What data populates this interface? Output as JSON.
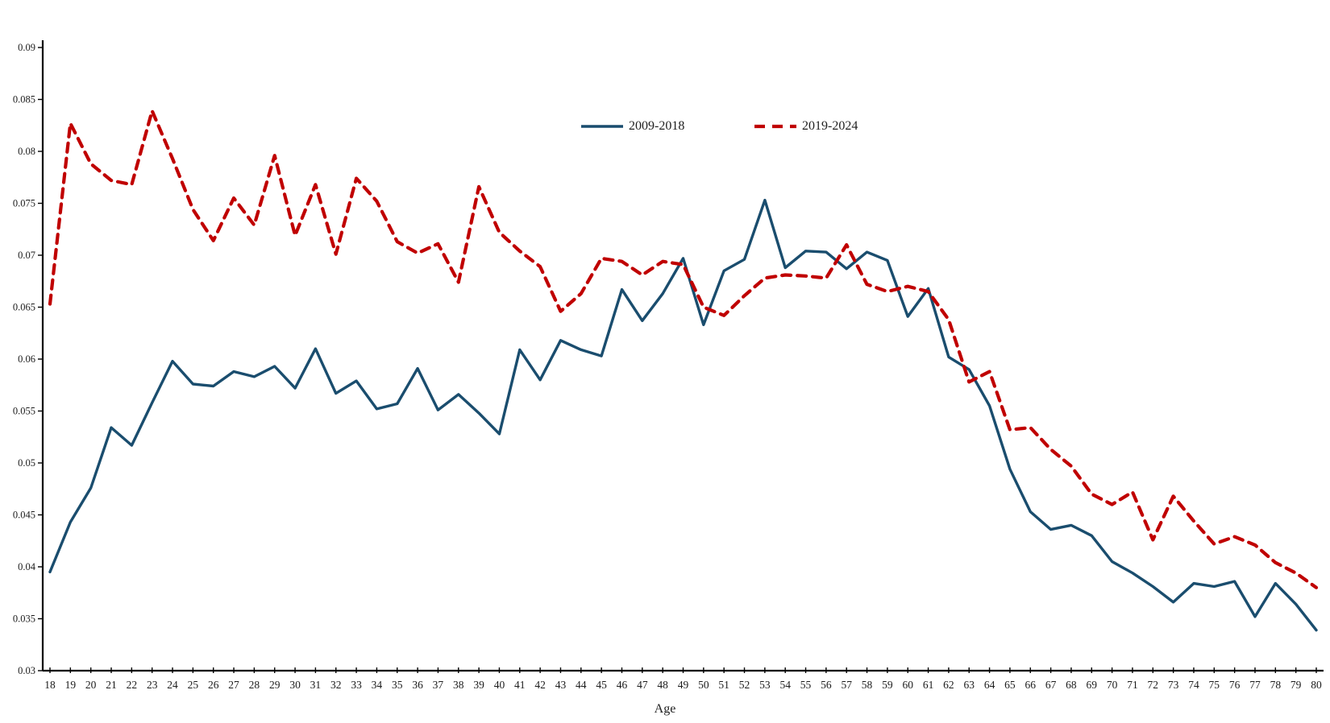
{
  "chart_data": {
    "type": "line",
    "title": "",
    "xlabel": "Age",
    "ylabel": "",
    "grid": false,
    "legend_position": "top-center",
    "ylim": [
      0.03,
      0.09
    ],
    "y_ticks": [
      0.03,
      0.035,
      0.04,
      0.045,
      0.05,
      0.055,
      0.06,
      0.065,
      0.07,
      0.075,
      0.08,
      0.085,
      0.09
    ],
    "x": [
      18,
      19,
      20,
      21,
      22,
      23,
      24,
      25,
      26,
      27,
      28,
      29,
      30,
      31,
      32,
      33,
      34,
      35,
      36,
      37,
      38,
      39,
      40,
      41,
      42,
      43,
      44,
      45,
      46,
      47,
      48,
      49,
      50,
      51,
      52,
      53,
      54,
      55,
      56,
      57,
      58,
      59,
      60,
      61,
      62,
      63,
      64,
      65,
      66,
      67,
      68,
      69,
      70,
      71,
      72,
      73,
      74,
      75,
      76,
      77,
      78,
      79,
      80
    ],
    "series": [
      {
        "name": "2009-2018",
        "style": "solid",
        "color": "#1a4d6e",
        "values": [
          0.0395,
          0.0443,
          0.0476,
          0.0534,
          0.0517,
          0.0558,
          0.0598,
          0.0576,
          0.0574,
          0.0588,
          0.0583,
          0.0593,
          0.0572,
          0.061,
          0.0567,
          0.0579,
          0.0552,
          0.0557,
          0.0591,
          0.0551,
          0.0566,
          0.0548,
          0.0528,
          0.0609,
          0.058,
          0.0618,
          0.0609,
          0.0603,
          0.0667,
          0.0637,
          0.0663,
          0.0697,
          0.0633,
          0.0685,
          0.0696,
          0.0753,
          0.0688,
          0.0704,
          0.0703,
          0.0687,
          0.0703,
          0.0695,
          0.0641,
          0.0668,
          0.0602,
          0.059,
          0.0555,
          0.0494,
          0.0453,
          0.0436,
          0.044,
          0.043,
          0.0405,
          0.0394,
          0.0381,
          0.0366,
          0.0384,
          0.0381,
          0.0386,
          0.0352,
          0.0384,
          0.0364,
          0.0339
        ]
      },
      {
        "name": "2019-2024",
        "style": "dashed",
        "color": "#c00000",
        "values": [
          0.0653,
          0.0827,
          0.0788,
          0.0772,
          0.0768,
          0.0839,
          0.0793,
          0.0744,
          0.0714,
          0.0755,
          0.0729,
          0.0796,
          0.0719,
          0.0768,
          0.0701,
          0.0774,
          0.0752,
          0.0713,
          0.0702,
          0.0711,
          0.0674,
          0.0766,
          0.0722,
          0.0704,
          0.0689,
          0.0646,
          0.0663,
          0.0697,
          0.0694,
          0.0681,
          0.0694,
          0.0691,
          0.065,
          0.0642,
          0.0661,
          0.0678,
          0.0681,
          0.068,
          0.0678,
          0.071,
          0.0672,
          0.0665,
          0.067,
          0.0665,
          0.0638,
          0.0578,
          0.0588,
          0.0532,
          0.0534,
          0.0513,
          0.0497,
          0.047,
          0.046,
          0.0472,
          0.0426,
          0.0468,
          0.0444,
          0.0422,
          0.0429,
          0.0421,
          0.0404,
          0.0394,
          0.038
        ]
      }
    ]
  },
  "axis_colors": {
    "line": "#000000",
    "tick_label": "#1c1c1c"
  }
}
